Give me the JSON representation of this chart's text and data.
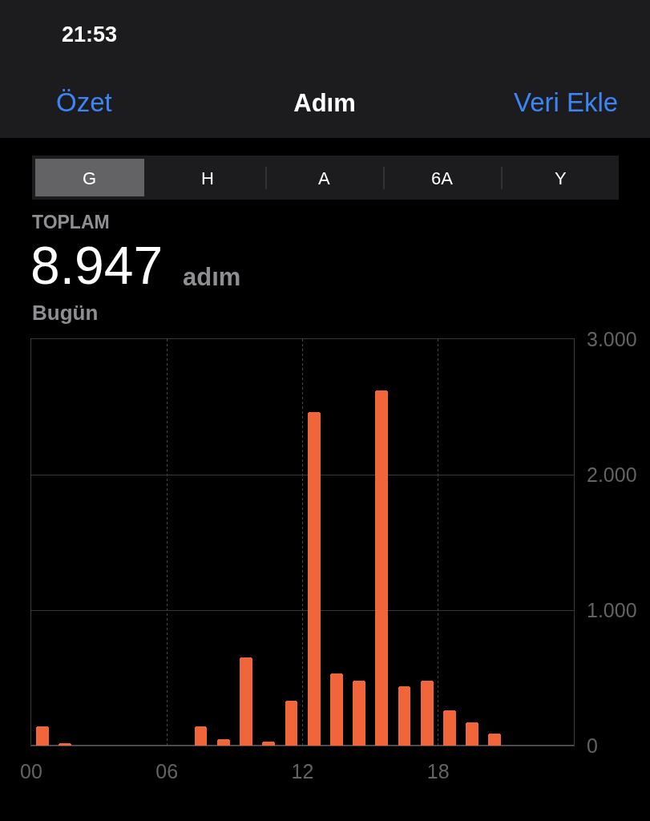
{
  "chart_data": {
    "type": "bar",
    "title": "Adım",
    "x": [
      0.5,
      1.5,
      7.5,
      8.5,
      9.5,
      10.5,
      11.5,
      12.5,
      13.5,
      14.5,
      15.5,
      16.5,
      17.5,
      18.5,
      19.5,
      20.5
    ],
    "values": [
      140,
      20,
      140,
      50,
      650,
      30,
      330,
      2460,
      530,
      480,
      2620,
      440,
      480,
      260,
      170,
      90
    ],
    "color": "#f0663a",
    "xlim": [
      0,
      24
    ],
    "xticks": [
      {
        "value": 0,
        "label": "00"
      },
      {
        "value": 6,
        "label": "06"
      },
      {
        "value": 12,
        "label": "12"
      },
      {
        "value": 18,
        "label": "18"
      }
    ],
    "ylim": [
      0,
      3000
    ],
    "yticks": [
      0,
      {
        "value": 1000,
        "label": "1.000"
      },
      {
        "value": 2000,
        "label": "2.000"
      },
      {
        "value": 3000,
        "label": "3.000"
      }
    ],
    "grid": true,
    "annotations": [
      "21:53",
      "Özet",
      "Veri Ekle",
      "G",
      "H",
      "A",
      "6A",
      "Y",
      "TOPLAM",
      "8.947",
      "adım",
      "Bugün"
    ]
  }
}
